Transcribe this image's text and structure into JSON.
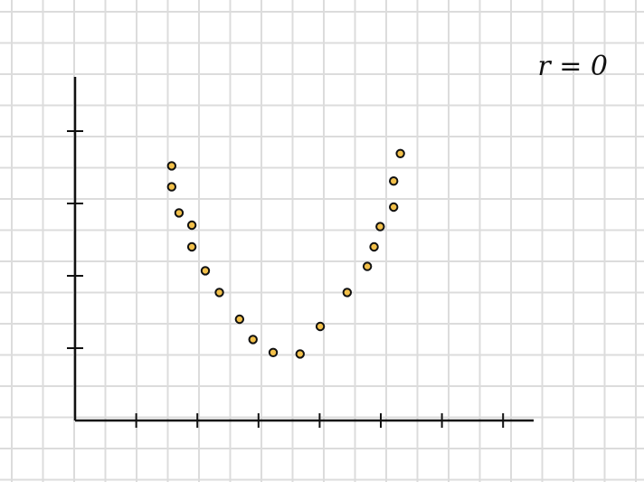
{
  "annotation": "r = 0",
  "colors": {
    "grid": "#dcdcdc",
    "axis": "#111111",
    "point_fill": "#f2c04a",
    "point_stroke": "#111111"
  },
  "chart_data": {
    "type": "scatter",
    "title": "",
    "xlabel": "",
    "ylabel": "",
    "grid": true,
    "xlim": [
      0,
      7.5
    ],
    "ylim": [
      0,
      4.75
    ],
    "x_ticks": [
      1,
      2,
      3,
      4,
      5,
      6,
      7
    ],
    "y_ticks": [
      1,
      2,
      3,
      4
    ],
    "annotations": [
      "r = 0"
    ],
    "series": [
      {
        "points": [
          {
            "x": 1.58,
            "y": 3.52
          },
          {
            "x": 1.58,
            "y": 3.23
          },
          {
            "x": 1.7,
            "y": 2.87
          },
          {
            "x": 1.91,
            "y": 2.7
          },
          {
            "x": 1.91,
            "y": 2.4
          },
          {
            "x": 2.13,
            "y": 2.07
          },
          {
            "x": 2.36,
            "y": 1.77
          },
          {
            "x": 2.69,
            "y": 1.4
          },
          {
            "x": 2.91,
            "y": 1.12
          },
          {
            "x": 3.24,
            "y": 0.94
          },
          {
            "x": 3.68,
            "y": 0.92
          },
          {
            "x": 4.01,
            "y": 1.3
          },
          {
            "x": 4.45,
            "y": 1.77
          },
          {
            "x": 4.78,
            "y": 2.13
          },
          {
            "x": 4.89,
            "y": 2.4
          },
          {
            "x": 4.99,
            "y": 2.68
          },
          {
            "x": 5.21,
            "y": 2.95
          },
          {
            "x": 5.21,
            "y": 3.31
          },
          {
            "x": 5.32,
            "y": 3.69
          }
        ]
      }
    ]
  }
}
